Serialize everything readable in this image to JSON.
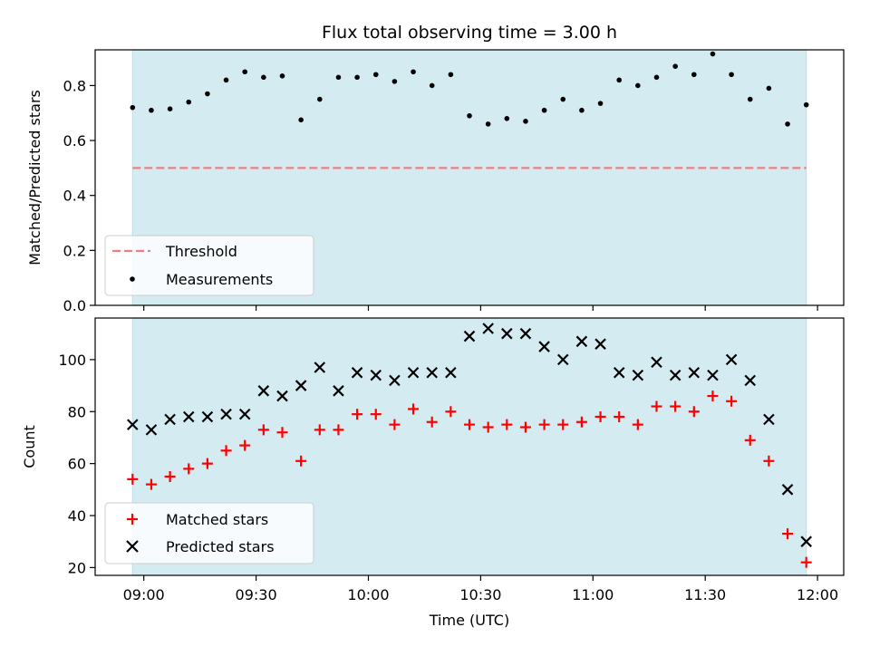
{
  "chart_data": {
    "title": "Flux total observing time = 3.00 h",
    "xlabel": "Time (UTC)",
    "x_ticks": [
      "09:00",
      "09:30",
      "10:00",
      "10:30",
      "11:00",
      "11:30",
      "12:00"
    ],
    "shaded_span": {
      "start": "08:57",
      "end": "11:57",
      "color": "#add8e6"
    },
    "times": [
      "08:57",
      "09:02",
      "09:07",
      "09:12",
      "09:17",
      "09:22",
      "09:27",
      "09:32",
      "09:37",
      "09:42",
      "09:47",
      "09:52",
      "09:57",
      "10:02",
      "10:07",
      "10:12",
      "10:17",
      "10:22",
      "10:27",
      "10:32",
      "10:37",
      "10:42",
      "10:47",
      "10:52",
      "10:57",
      "11:02",
      "11:07",
      "11:12",
      "11:17",
      "11:22",
      "11:27",
      "11:32",
      "11:37",
      "11:42",
      "11:47",
      "11:52",
      "11:57"
    ],
    "top": {
      "type": "scatter",
      "ylabel": "Matched/Predicted stars",
      "ylim": [
        0,
        0.93
      ],
      "y_ticks": [
        0.0,
        0.2,
        0.4,
        0.6,
        0.8
      ],
      "threshold": {
        "name": "Threshold",
        "value": 0.5,
        "color": "#f08080"
      },
      "series": [
        {
          "name": "Measurements",
          "color": "#000000",
          "values": [
            0.72,
            0.71,
            0.715,
            0.74,
            0.77,
            0.82,
            0.85,
            0.83,
            0.835,
            0.675,
            0.75,
            0.83,
            0.83,
            0.84,
            0.815,
            0.85,
            0.8,
            0.84,
            0.69,
            0.66,
            0.68,
            0.67,
            0.71,
            0.75,
            0.71,
            0.735,
            0.82,
            0.8,
            0.83,
            0.87,
            0.84,
            0.915,
            0.84,
            0.75,
            0.79,
            0.66,
            0.73
          ]
        }
      ],
      "legend": "lower left"
    },
    "bottom": {
      "type": "scatter",
      "ylabel": "Count",
      "ylim": [
        17,
        116
      ],
      "y_ticks": [
        20,
        40,
        60,
        80,
        100
      ],
      "series": [
        {
          "name": "Matched stars",
          "color": "#ff0000",
          "marker": "plus",
          "values": [
            54,
            52,
            55,
            58,
            60,
            65,
            67,
            73,
            72,
            61,
            73,
            73,
            79,
            79,
            75,
            81,
            76,
            80,
            75,
            74,
            75,
            74,
            75,
            75,
            76,
            78,
            78,
            75,
            82,
            82,
            80,
            86,
            84,
            69,
            61,
            33,
            22
          ]
        },
        {
          "name": "Predicted stars",
          "color": "#000000",
          "marker": "x",
          "values": [
            75,
            73,
            77,
            78,
            78,
            79,
            79,
            88,
            86,
            90,
            97,
            88,
            95,
            94,
            92,
            95,
            95,
            95,
            109,
            112,
            110,
            110,
            105,
            100,
            107,
            106,
            95,
            94,
            99,
            94,
            95,
            94,
            100,
            92,
            77,
            50,
            30
          ]
        }
      ],
      "legend": "lower left"
    }
  }
}
